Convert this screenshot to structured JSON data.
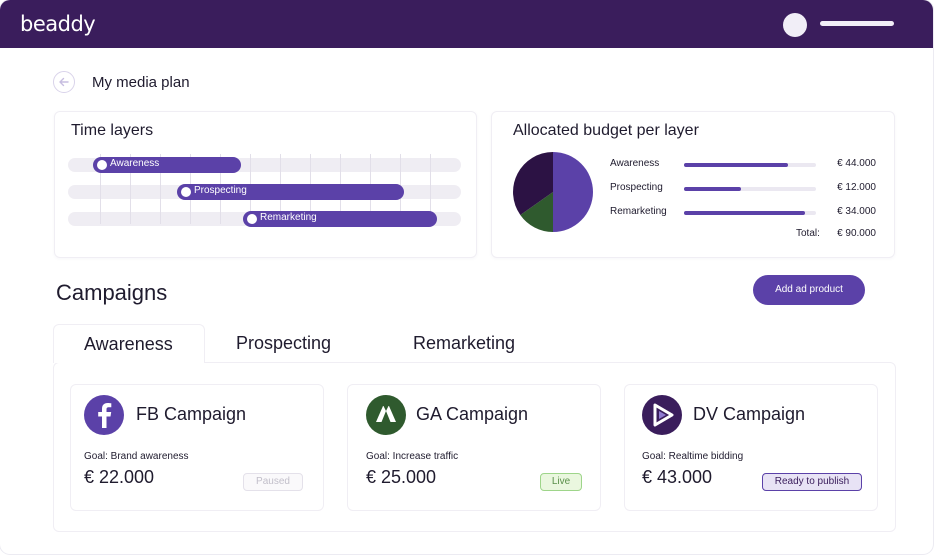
{
  "app": {
    "logo": "beaddy"
  },
  "page": {
    "title": "My media plan"
  },
  "time_layers": {
    "title": "Time layers",
    "layers": [
      {
        "label": "Awareness"
      },
      {
        "label": "Prospecting"
      },
      {
        "label": "Remarketing"
      }
    ]
  },
  "budget": {
    "title": "Allocated budget per layer",
    "rows": [
      {
        "label": "Awareness",
        "value": "€ 44.000",
        "fraction": 0.79
      },
      {
        "label": "Prospecting",
        "value": "€ 12.000",
        "fraction": 0.43
      },
      {
        "label": "Remarketing",
        "value": "€ 34.000",
        "fraction": 0.92
      }
    ],
    "total_label": "Total:",
    "total_value": "€ 90.000",
    "colors": {
      "awareness": "#5b41a8",
      "prospecting": "#2f5a2e",
      "remarketing": "#2c1244"
    }
  },
  "campaigns": {
    "title": "Campaigns",
    "add_button": "Add ad product",
    "tabs": [
      {
        "label": "Awareness",
        "active": true
      },
      {
        "label": "Prospecting",
        "active": false
      },
      {
        "label": "Remarketing",
        "active": false
      }
    ],
    "cards": [
      {
        "name": "FB Campaign",
        "icon": "facebook-icon",
        "goal": "Goal: Brand awareness",
        "amount": "€ 22.000",
        "status": "Paused"
      },
      {
        "name": "GA Campaign",
        "icon": "google-ads-icon",
        "goal": "Goal: Increase traffic",
        "amount": "€ 25.000",
        "status": "Live"
      },
      {
        "name": "DV Campaign",
        "icon": "dv360-icon",
        "goal": "Goal: Realtime bidding",
        "amount": "€ 43.000",
        "status": "Ready to publish"
      }
    ]
  }
}
